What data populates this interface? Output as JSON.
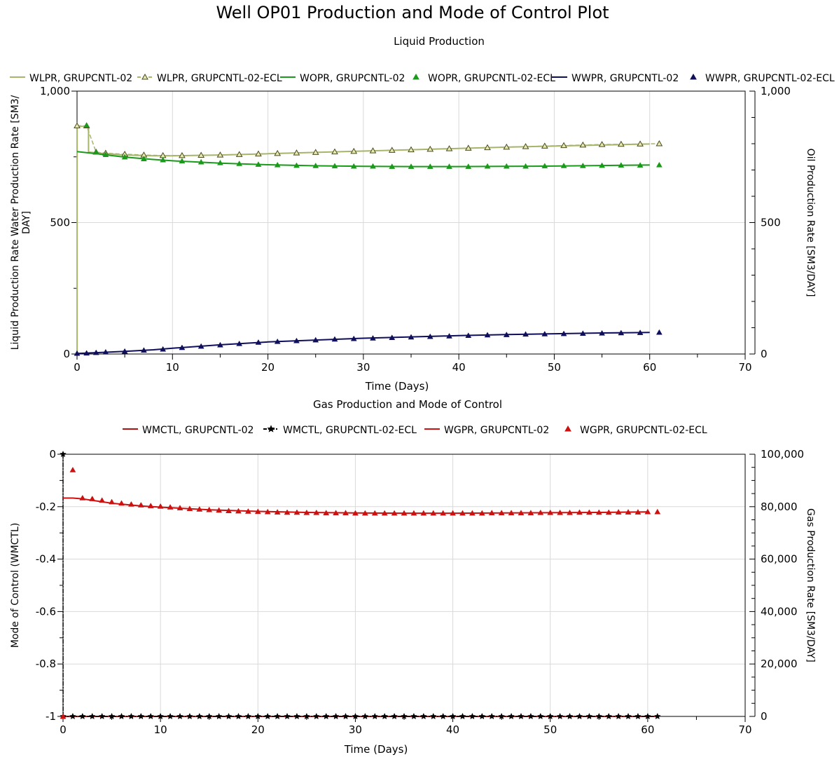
{
  "page": {
    "title": "Well OP01 Production and Mode of Control Plot"
  },
  "chart_data": [
    {
      "type": "line",
      "title": "Liquid Production",
      "xlabel": "Time (Days)",
      "ylabel": "Liquid Production Rate Water Production Rate [SM3/DAY]",
      "ylabel_lines": [
        "Liquid Production Rate Water Production Rate [SM3/",
        "DAY]"
      ],
      "y2label": "Oil Production Rate [SM3/DAY]",
      "xlim": [
        0,
        70
      ],
      "ylim": [
        0,
        1000
      ],
      "y2lim": [
        0,
        1000
      ],
      "xticks": [
        "0",
        "10",
        "20",
        "30",
        "40",
        "50",
        "60",
        "70"
      ],
      "yticks": [
        "0",
        "500",
        "1,000"
      ],
      "y2ticks": [
        "0",
        "500",
        "1,000"
      ],
      "grid": true,
      "legend_position": "top",
      "series": [
        {
          "name": "WLPR, GRUPCNTL-02",
          "color": "#a7b56a",
          "style": "line",
          "axis": "left",
          "x": [
            0,
            0.01,
            1,
            1.2,
            3,
            5,
            8,
            10,
            15,
            20,
            25,
            30,
            35,
            40,
            45,
            50,
            55,
            60
          ],
          "y": [
            0,
            866,
            866,
            768,
            762,
            757,
            754,
            754,
            757,
            762,
            767,
            772,
            777,
            782,
            787,
            791,
            795,
            799
          ]
        },
        {
          "name": "WLPR, GRUPCNTL-02-ECL",
          "color": "#a7b56a",
          "marker": "triangle-open",
          "style": "dashed-markers",
          "axis": "left",
          "x": [
            0,
            1,
            2,
            3,
            5,
            7,
            9,
            11,
            13,
            15,
            17,
            19,
            21,
            23,
            25,
            27,
            29,
            31,
            33,
            35,
            37,
            39,
            41,
            43,
            45,
            47,
            49,
            51,
            53,
            55,
            57,
            59,
            61
          ],
          "y": [
            868,
            868,
            768,
            764,
            760,
            757,
            755,
            755,
            756,
            757,
            759,
            761,
            763,
            765,
            767,
            769,
            771,
            773,
            775,
            777,
            779,
            781,
            783,
            785,
            787,
            789,
            791,
            793,
            795,
            797,
            798,
            799,
            800
          ]
        },
        {
          "name": "WOPR, GRUPCNTL-02",
          "color": "#1a9a1a",
          "style": "line",
          "axis": "right",
          "x": [
            0,
            2,
            5,
            8,
            10,
            15,
            20,
            25,
            30,
            35,
            40,
            45,
            50,
            55,
            60
          ],
          "y": [
            770,
            762,
            749,
            740,
            735,
            726,
            720,
            716,
            714,
            713,
            713,
            714,
            715,
            717,
            719
          ]
        },
        {
          "name": "WOPR, GRUPCNTL-02-ECL",
          "color": "#1a9a1a",
          "marker": "triangle",
          "style": "markers",
          "axis": "right",
          "x": [
            1,
            2,
            3,
            5,
            7,
            9,
            11,
            13,
            15,
            17,
            19,
            21,
            23,
            25,
            27,
            29,
            31,
            33,
            35,
            37,
            39,
            41,
            43,
            45,
            47,
            49,
            51,
            53,
            55,
            57,
            59,
            61
          ],
          "y": [
            870,
            768,
            758,
            749,
            742,
            738,
            734,
            730,
            727,
            724,
            721,
            719,
            717,
            716,
            715,
            714,
            714,
            713,
            713,
            713,
            713,
            713,
            714,
            714,
            714,
            715,
            716,
            716,
            717,
            718,
            718,
            719
          ]
        },
        {
          "name": "WWPR, GRUPCNTL-02",
          "color": "#0f0f5c",
          "style": "line",
          "axis": "left",
          "x": [
            0,
            2,
            5,
            8,
            10,
            15,
            20,
            25,
            30,
            35,
            40,
            45,
            50,
            55,
            60
          ],
          "y": [
            2,
            5,
            10,
            16,
            22,
            35,
            46,
            53,
            60,
            65,
            70,
            74,
            77,
            80,
            82
          ]
        },
        {
          "name": "WWPR, GRUPCNTL-02-ECL",
          "color": "#0f0f5c",
          "marker": "triangle",
          "style": "markers",
          "axis": "left",
          "x": [
            0,
            1,
            2,
            3,
            5,
            7,
            9,
            11,
            13,
            15,
            17,
            19,
            21,
            23,
            25,
            27,
            29,
            31,
            33,
            35,
            37,
            39,
            41,
            43,
            45,
            47,
            49,
            51,
            53,
            55,
            57,
            59,
            61
          ],
          "y": [
            2,
            3,
            5,
            7,
            10,
            14,
            18,
            24,
            29,
            34,
            39,
            44,
            47,
            50,
            53,
            56,
            58,
            60,
            62,
            64,
            66,
            68,
            70,
            72,
            73,
            75,
            76,
            77,
            78,
            79,
            80,
            81,
            82
          ]
        }
      ]
    },
    {
      "type": "line",
      "title": "Gas Production and Mode of Control",
      "xlabel": "Time (Days)",
      "ylabel": "Mode of Control (WMCTL)",
      "y2label": "Gas Production Rate [SM3/DAY]",
      "xlim": [
        0,
        70
      ],
      "ylim": [
        -1,
        0
      ],
      "y2lim": [
        0,
        100000
      ],
      "xticks": [
        "0",
        "10",
        "20",
        "30",
        "40",
        "50",
        "60",
        "70"
      ],
      "yticks": [
        "-1",
        "-0.8",
        "-0.6",
        "-0.4",
        "-0.2",
        "0"
      ],
      "y2ticks": [
        "0",
        "20,000",
        "40,000",
        "60,000",
        "80,000",
        "100,000"
      ],
      "grid": true,
      "legend_position": "top",
      "series": [
        {
          "name": "WMCTL, GRUPCNTL-02",
          "color": "#b01010",
          "style": "line",
          "axis": "left",
          "x": [
            0,
            61
          ],
          "y": [
            -1,
            -1
          ]
        },
        {
          "name": "WMCTL, GRUPCNTL-02-ECL",
          "color": "#000000",
          "marker": "star",
          "style": "dashdot-markers",
          "axis": "left",
          "x": [
            0,
            0.01,
            1,
            2,
            3,
            4,
            5,
            6,
            7,
            8,
            9,
            10,
            11,
            12,
            13,
            14,
            15,
            16,
            17,
            18,
            19,
            20,
            21,
            22,
            23,
            24,
            25,
            26,
            27,
            28,
            29,
            30,
            31,
            32,
            33,
            34,
            35,
            36,
            37,
            38,
            39,
            40,
            41,
            42,
            43,
            44,
            45,
            46,
            47,
            48,
            49,
            50,
            51,
            52,
            53,
            54,
            55,
            56,
            57,
            58,
            59,
            60,
            61
          ],
          "y": [
            0,
            -1,
            -1,
            -1,
            -1,
            -1,
            -1,
            -1,
            -1,
            -1,
            -1,
            -1,
            -1,
            -1,
            -1,
            -1,
            -1,
            -1,
            -1,
            -1,
            -1,
            -1,
            -1,
            -1,
            -1,
            -1,
            -1,
            -1,
            -1,
            -1,
            -1,
            -1,
            -1,
            -1,
            -1,
            -1,
            -1,
            -1,
            -1,
            -1,
            -1,
            -1,
            -1,
            -1,
            -1,
            -1,
            -1,
            -1,
            -1,
            -1,
            -1,
            -1,
            -1,
            -1,
            -1,
            -1,
            -1,
            -1,
            -1,
            -1,
            -1,
            -1,
            -1
          ]
        },
        {
          "name": "WGPR, GRUPCNTL-02",
          "color": "#cc1111",
          "style": "line",
          "axis": "right",
          "x": [
            0,
            1,
            2,
            3,
            5,
            8,
            10,
            15,
            20,
            25,
            30,
            35,
            40,
            45,
            50,
            55,
            60
          ],
          "y": [
            83300,
            83300,
            83000,
            82400,
            81300,
            80300,
            79800,
            78800,
            78200,
            77800,
            77600,
            77500,
            77500,
            77600,
            77700,
            77800,
            78000
          ]
        },
        {
          "name": "WGPR, GRUPCNTL-02-ECL",
          "color": "#cc1111",
          "marker": "triangle",
          "style": "markers",
          "axis": "right",
          "x": [
            0,
            1,
            2,
            3,
            4,
            5,
            6,
            7,
            8,
            9,
            10,
            11,
            12,
            13,
            14,
            15,
            16,
            17,
            18,
            19,
            20,
            21,
            22,
            23,
            24,
            25,
            26,
            27,
            28,
            29,
            30,
            31,
            32,
            33,
            34,
            35,
            36,
            37,
            38,
            39,
            40,
            41,
            42,
            43,
            44,
            45,
            46,
            47,
            48,
            49,
            50,
            51,
            52,
            53,
            54,
            55,
            56,
            57,
            58,
            59,
            60,
            61
          ],
          "y": [
            0,
            94000,
            83300,
            83000,
            82400,
            81800,
            81300,
            80900,
            80600,
            80300,
            80100,
            79800,
            79500,
            79200,
            79000,
            78800,
            78600,
            78400,
            78300,
            78200,
            78100,
            78000,
            77900,
            77800,
            77800,
            77700,
            77700,
            77600,
            77600,
            77600,
            77500,
            77500,
            77500,
            77500,
            77500,
            77500,
            77500,
            77500,
            77500,
            77500,
            77500,
            77500,
            77500,
            77500,
            77600,
            77600,
            77600,
            77600,
            77600,
            77700,
            77700,
            77700,
            77700,
            77800,
            77800,
            77800,
            77800,
            77900,
            77900,
            77900,
            78000,
            78000
          ]
        }
      ]
    }
  ]
}
